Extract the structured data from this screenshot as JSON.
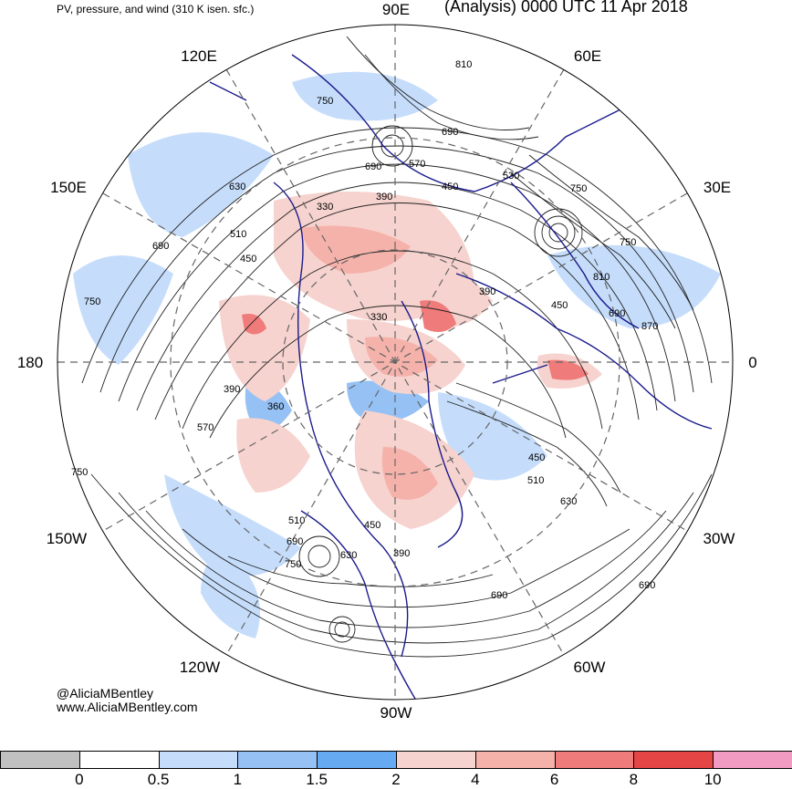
{
  "header": {
    "title_left": "PV, pressure, and wind (310 K isen. sfc.)",
    "title_right": "(Analysis) 0000 UTC 11 Apr 2018"
  },
  "longitude_labels": {
    "e90": "90E",
    "e120": "120E",
    "e60": "60E",
    "e150": "150E",
    "e30": "30E",
    "w180": "180",
    "e0": "0",
    "w150": "150W",
    "w30": "30W",
    "w120": "120W",
    "w60": "60W",
    "w90": "90W"
  },
  "credits": {
    "handle": "@AliciaMBentley",
    "website": "www.AliciaMBentley.com"
  },
  "contour_labels": {
    "c810a": "810",
    "c750a": "750",
    "c690a": "690",
    "c570a": "570",
    "c690b": "690",
    "c630a": "630",
    "c390a": "390",
    "c450a": "450",
    "c330a": "330",
    "c750b": "750",
    "c530a": "530",
    "c690c": "690",
    "c510a": "510",
    "c450b": "450",
    "c750c": "750",
    "c810b": "810",
    "c690d": "690",
    "c870a": "870",
    "c390b": "390",
    "c450c": "450",
    "c750d": "750",
    "c390c": "390",
    "c570b": "570",
    "c750e": "750",
    "c450d": "450",
    "c510b": "510",
    "c630b": "630",
    "c510c": "510",
    "c690e": "690",
    "c750f": "750",
    "c450e": "450",
    "c630c": "630",
    "c390d": "390",
    "c690f": "690",
    "c690g": "690",
    "c330b": "330",
    "c360a": "360"
  },
  "legend": {
    "colors": [
      "#c0c0c0",
      "#ffffff",
      "#c5ddfb",
      "#95c1f5",
      "#66aaf2",
      "#f6d3ce",
      "#f5b2ab",
      "#ef7b7b",
      "#e54545",
      "#f19bc3"
    ],
    "labels": [
      "0",
      "0.5",
      "1",
      "1.5",
      "2",
      "4",
      "6",
      "8",
      "10"
    ]
  }
}
